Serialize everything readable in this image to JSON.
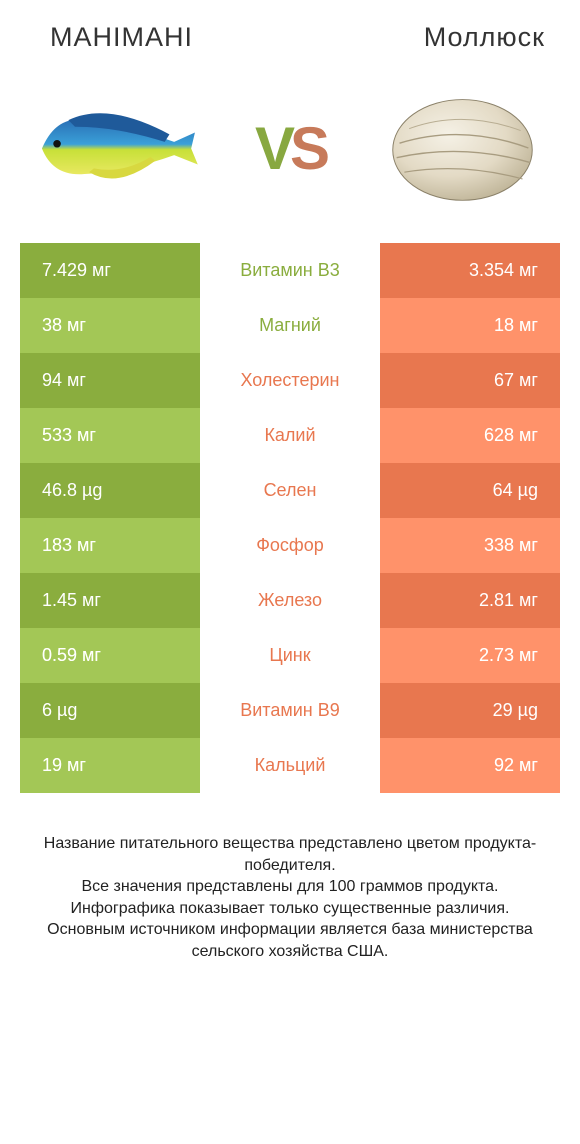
{
  "colors": {
    "left_bar": "#8aad3e",
    "left_bar_alt": "#97b850",
    "right_bar": "#e8774f",
    "right_bar_alt": "#ec8762",
    "mid_green": "#8aad3e",
    "mid_orange": "#e8774f"
  },
  "header": {
    "left": "MAHIMAHI",
    "right": "Моллюск",
    "vs_v": "V",
    "vs_s": "S"
  },
  "rows": [
    {
      "left": "7.429 мг",
      "mid": "Витамин B3",
      "right": "3.354 мг",
      "mid_color": "left"
    },
    {
      "left": "38 мг",
      "mid": "Магний",
      "right": "18 мг",
      "mid_color": "left"
    },
    {
      "left": "94 мг",
      "mid": "Холестерин",
      "right": "67 мг",
      "mid_color": "right"
    },
    {
      "left": "533 мг",
      "mid": "Калий",
      "right": "628 мг",
      "mid_color": "right"
    },
    {
      "left": "46.8 µg",
      "mid": "Селен",
      "right": "64 µg",
      "mid_color": "right"
    },
    {
      "left": "183 мг",
      "mid": "Фосфор",
      "right": "338 мг",
      "mid_color": "right"
    },
    {
      "left": "1.45 мг",
      "mid": "Железо",
      "right": "2.81 мг",
      "mid_color": "right"
    },
    {
      "left": "0.59 мг",
      "mid": "Цинк",
      "right": "2.73 мг",
      "mid_color": "right"
    },
    {
      "left": "6 µg",
      "mid": "Витамин B9",
      "right": "29 µg",
      "mid_color": "right"
    },
    {
      "left": "19 мг",
      "mid": "Кальций",
      "right": "92 мг",
      "mid_color": "right"
    }
  ],
  "footnote": "Название питательного вещества представлено цветом продукта-победителя.\nВсе значения представлены для 100 граммов продукта.\nИнфографика показывает только существенные различия.\nОсновным источником информации является база министерства сельского хозяйства США."
}
